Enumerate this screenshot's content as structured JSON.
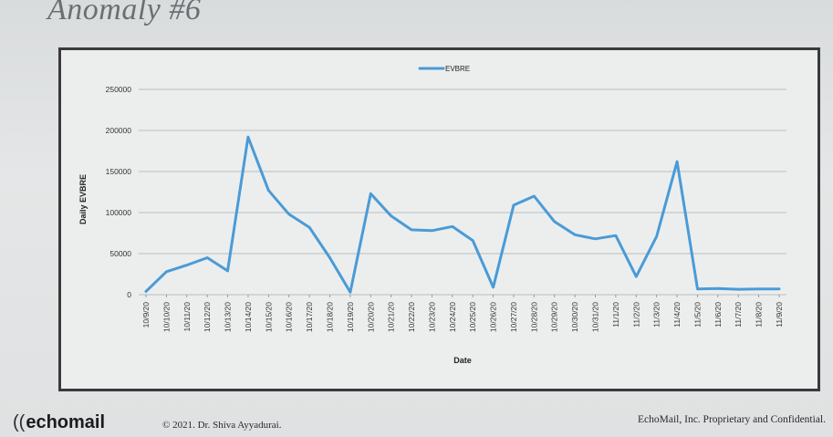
{
  "slide": {
    "title": "Anomaly #6"
  },
  "footer": {
    "logo_text": "echomail",
    "copyright": "© 2021. Dr. Shiva Ayyadurai.",
    "confidential": "EchoMail, Inc. Proprietary and Confidential."
  },
  "colors": {
    "series": "#4a9bd6",
    "frame": "#3a3a3a",
    "grid": "#b9bdc0"
  },
  "chart_data": {
    "type": "line",
    "xlabel": "Date",
    "ylabel": "Daily EVBRE",
    "ylim": [
      0,
      250000
    ],
    "yticks": [
      "250000",
      "200000",
      "150000",
      "100000",
      "50000",
      "0"
    ],
    "grid": true,
    "legend_position": "top-center",
    "categories": [
      "10/9/20",
      "10/10/20",
      "10/11/20",
      "10/12/20",
      "10/13/20",
      "10/14/20",
      "10/15/20",
      "10/16/20",
      "10/17/20",
      "10/18/20",
      "10/19/20",
      "10/20/20",
      "10/21/20",
      "10/22/20",
      "10/23/20",
      "10/24/20",
      "10/25/20",
      "10/26/20",
      "10/27/20",
      "10/28/20",
      "10/29/20",
      "10/30/20",
      "10/31/20",
      "11/1/20",
      "11/2/20",
      "11/3/20",
      "11/4/20",
      "11/5/20",
      "11/6/20",
      "11/7/20",
      "11/8/20",
      "11/9/20"
    ],
    "series": [
      {
        "name": "EVBRE",
        "values": [
          4000,
          28000,
          36000,
          45000,
          29000,
          192000,
          127000,
          98000,
          82000,
          45000,
          3000,
          123000,
          96000,
          79000,
          78000,
          83000,
          66000,
          9000,
          109000,
          120000,
          89000,
          73000,
          68000,
          72000,
          22000,
          71000,
          162000,
          7000,
          7500,
          6500,
          7000,
          7000
        ]
      }
    ]
  }
}
